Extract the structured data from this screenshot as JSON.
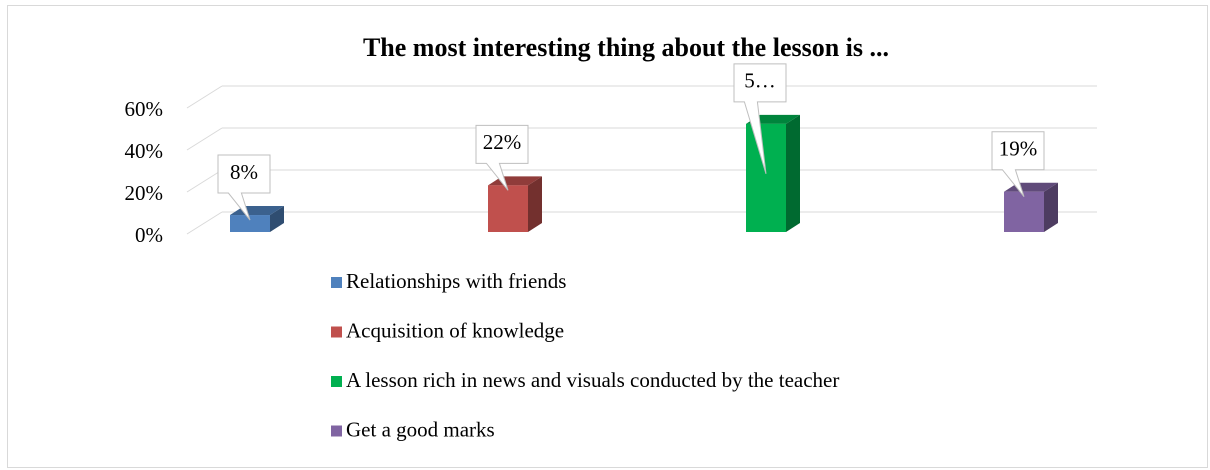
{
  "chart_data": {
    "type": "bar3d",
    "title": "The most interesting thing about the lesson is ...",
    "series": [
      {
        "name": "Relationships with friends",
        "color": "#4f81bd",
        "values": [
          8
        ],
        "value_labels": [
          "8%"
        ]
      },
      {
        "name": "Acquisition of knowledge",
        "color": "#c0504d",
        "values": [
          22
        ],
        "value_labels": [
          "22%"
        ]
      },
      {
        "name": "A lesson rich in news and visuals conducted by the teacher",
        "color": "#00b050",
        "values": [
          51
        ],
        "value_labels": [
          "5…"
        ]
      },
      {
        "name": "Get a good marks",
        "color": "#8064a2",
        "values": [
          19
        ],
        "value_labels": [
          "19%"
        ]
      }
    ],
    "ylim": [
      0,
      60
    ],
    "yticks": [
      {
        "value": 0,
        "label": "0%"
      },
      {
        "value": 20,
        "label": "20%"
      },
      {
        "value": 40,
        "label": "40%"
      },
      {
        "value": 60,
        "label": "60%"
      }
    ],
    "grid": true,
    "legend": "bottom"
  }
}
